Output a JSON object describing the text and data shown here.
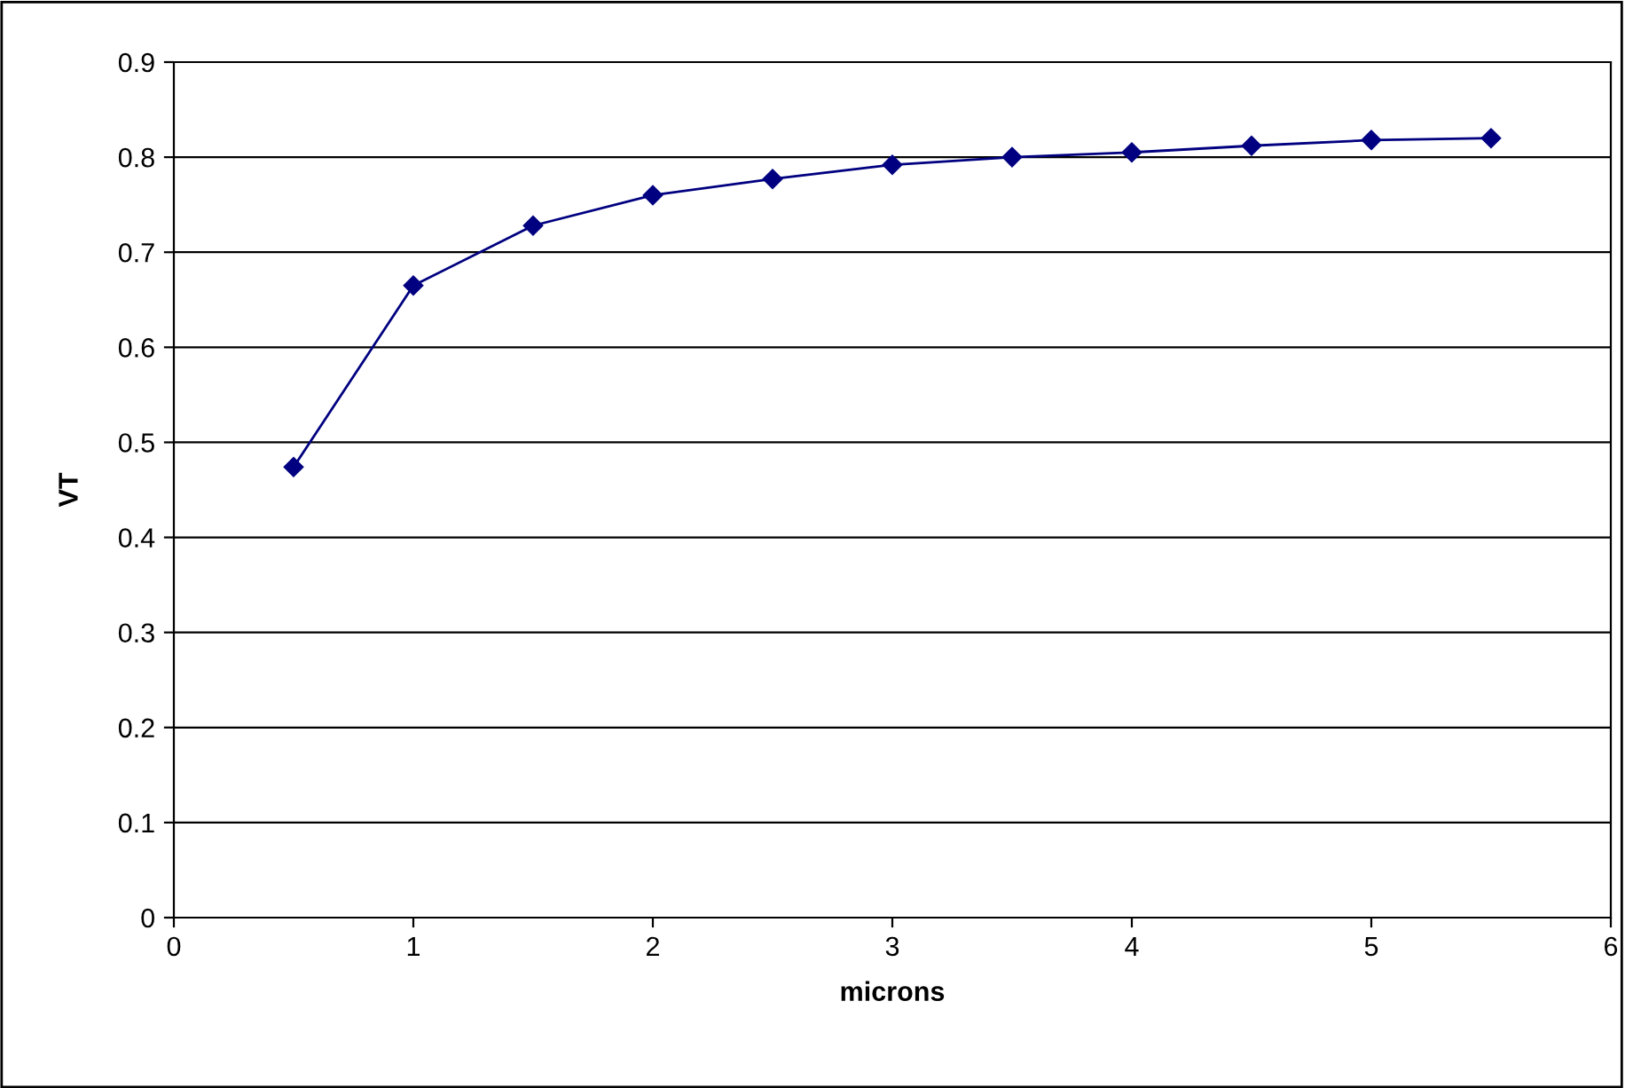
{
  "chart_data": {
    "type": "line",
    "xlabel": "microns",
    "ylabel": "VT",
    "x": [
      0.5,
      1,
      1.5,
      2,
      2.5,
      3,
      3.5,
      4,
      4.5,
      5,
      5.5
    ],
    "series": [
      {
        "color": "#000080",
        "values": [
          0.474,
          0.665,
          0.728,
          0.76,
          0.777,
          0.792,
          0.8,
          0.805,
          0.812,
          0.818,
          0.82
        ]
      }
    ],
    "xlim": [
      0,
      6
    ],
    "xticks": [
      0,
      1,
      2,
      3,
      4,
      5,
      6
    ],
    "ylim": [
      0,
      0.9
    ],
    "yticks": [
      0,
      0.1,
      0.2,
      0.3,
      0.4,
      0.5,
      0.6,
      0.7,
      0.8,
      0.9
    ],
    "grid": "y",
    "marker": "diamond",
    "line_style": "solid"
  }
}
